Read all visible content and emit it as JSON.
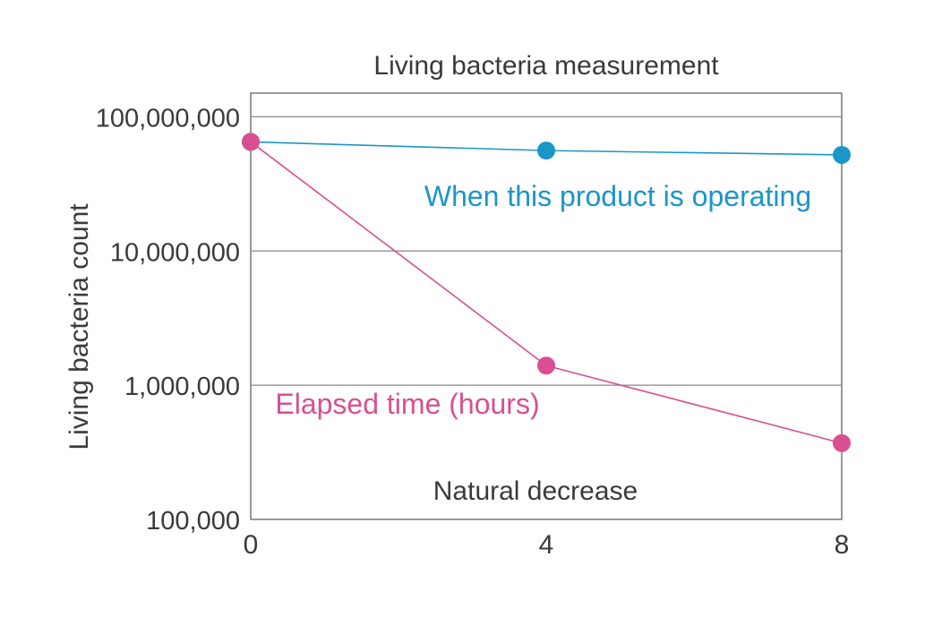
{
  "chart_data": {
    "type": "line",
    "title": "Living bacteria measurement",
    "xlabel": "",
    "ylabel": "Living bacteria count",
    "yscale": "log",
    "ylim": [
      100000,
      150000000
    ],
    "xlim": [
      0,
      8
    ],
    "xticks": [
      0,
      4,
      8
    ],
    "xtick_labels": [
      "0",
      "4",
      "8"
    ],
    "yticks": [
      100000,
      1000000,
      10000000,
      100000000
    ],
    "ytick_labels": [
      "100,000",
      "1,000,000",
      "10,000,000",
      "100,000,000"
    ],
    "grid": true,
    "series": [
      {
        "name": "When this product is operating",
        "color": "#1a96c8",
        "x": [
          0,
          4,
          8
        ],
        "y": [
          65000000,
          56000000,
          52000000
        ]
      },
      {
        "name": "",
        "color": "#d94f91",
        "x": [
          0,
          4,
          8
        ],
        "y": [
          65000000,
          1400000,
          370000
        ]
      }
    ],
    "annotations": [
      {
        "text": "When this product is operating",
        "color": "#1a96c8"
      },
      {
        "text": "Elapsed time (hours)",
        "color": "#d94f91"
      },
      {
        "text": "Natural decrease",
        "color": "#3a3a3a"
      }
    ]
  }
}
